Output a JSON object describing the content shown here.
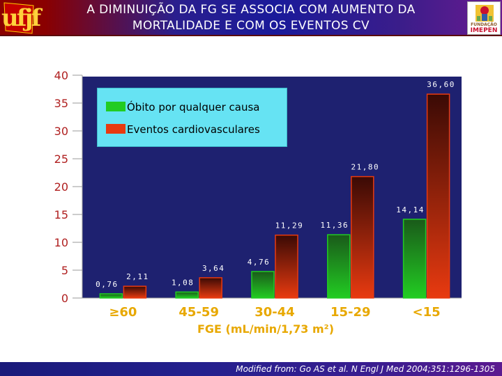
{
  "header": {
    "title_line1": "A DIMINUIÇÃO DA FG SE ASSOCIA COM AUMENTO DA",
    "title_line2": "MORTALIDADE E COM OS EVENTOS CV",
    "logo_left_text": "ufjf",
    "logo_right_line1": "FUNDAÇÃO",
    "logo_right_line2": "IMEPEN"
  },
  "colors": {
    "series_obito": "#22cc22",
    "series_cv": "#e83a10",
    "plot_background": "#1e2170",
    "axis_text": "#b02020",
    "category_text": "#e8a800",
    "data_label": "#ffffff",
    "legend_background": "#66e3f3"
  },
  "chart_data": {
    "type": "bar",
    "title": "",
    "xlabel": "FGE (mL/min/1,73 m²)",
    "ylabel": "",
    "ylim": [
      0,
      40
    ],
    "yticks": [
      0,
      5,
      10,
      15,
      20,
      25,
      30,
      35,
      40
    ],
    "grid": false,
    "legend_placement": "top-left",
    "categories": [
      "≥60",
      "45-59",
      "30-44",
      "15-29",
      "<15"
    ],
    "series": [
      {
        "name": "Óbito por qualquer causa",
        "values": [
          0.76,
          1.08,
          4.76,
          11.36,
          14.14
        ],
        "labels": [
          "0,76",
          "1,08",
          "4,76",
          "11,36",
          "14,14"
        ]
      },
      {
        "name": "Eventos cardiovasculares",
        "values": [
          2.11,
          3.64,
          11.29,
          21.8,
          36.6
        ],
        "labels": [
          "2,11",
          "3,64",
          "11,29",
          "21,80",
          "36,60"
        ]
      }
    ]
  },
  "footer": {
    "citation": "Modified from: Go AS et al. N Engl J Med 2004;351:1296-1305"
  }
}
